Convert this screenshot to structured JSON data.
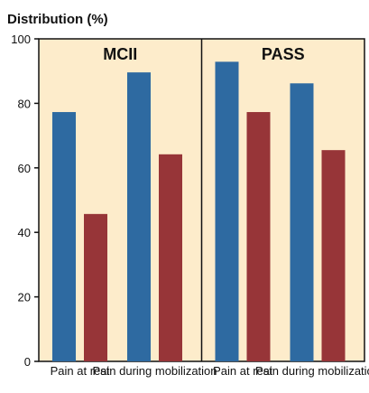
{
  "chart_data": {
    "type": "bar",
    "ylabel": "Distribution (%)",
    "ylim": [
      0,
      100
    ],
    "yticks": [
      0,
      20,
      40,
      60,
      80,
      100
    ],
    "grid": false,
    "panel_fill": "#fdeccb",
    "panels": [
      {
        "title": "MCII",
        "categories": [
          "Pain at rest",
          "Pain during mobilization"
        ],
        "series": [
          {
            "color": "#2e6aa1",
            "values": [
              77.3,
              89.6
            ]
          },
          {
            "color": "#973538",
            "values": [
              45.7,
              64.2
            ]
          }
        ]
      },
      {
        "title": "PASS",
        "categories": [
          "Pain at rest",
          "Pain during mobilization"
        ],
        "series": [
          {
            "color": "#2e6aa1",
            "values": [
              92.9,
              86.2
            ]
          },
          {
            "color": "#973538",
            "values": [
              77.3,
              65.5
            ]
          }
        ]
      }
    ]
  }
}
